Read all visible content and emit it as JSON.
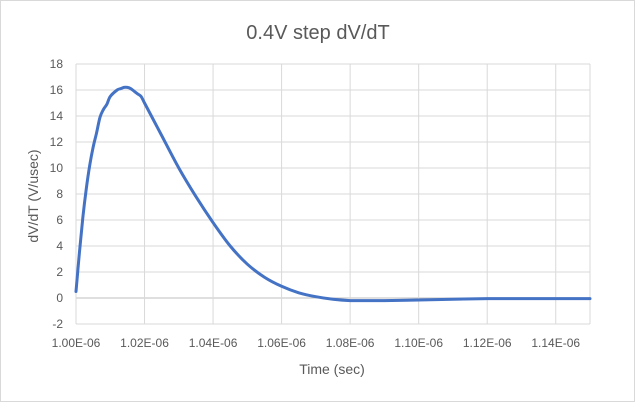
{
  "chart_data": {
    "type": "line",
    "title": "0.4V step dV/dT",
    "xlabel": "Time (sec)",
    "ylabel": "dV/dT (V/usec)",
    "xlim": [
      1e-06,
      1.15e-06
    ],
    "ylim": [
      -2,
      18
    ],
    "y_ticks": [
      -2,
      0,
      2,
      4,
      6,
      8,
      10,
      12,
      14,
      16,
      18
    ],
    "x_ticks": [
      1e-06,
      1.02e-06,
      1.04e-06,
      1.06e-06,
      1.08e-06,
      1.1e-06,
      1.12e-06,
      1.14e-06
    ],
    "x_tick_labels": [
      "1.00E-06",
      "1.02E-06",
      "1.04E-06",
      "1.06E-06",
      "1.08E-06",
      "1.10E-06",
      "1.12E-06",
      "1.14E-06"
    ],
    "y_tick_labels": [
      "-2",
      "0",
      "2",
      "4",
      "6",
      "8",
      "10",
      "12",
      "14",
      "16",
      "18"
    ],
    "grid": true,
    "legend": "none",
    "series": [
      {
        "color": "#4472c4",
        "x": [
          1e-06,
          1.001e-06,
          1.002e-06,
          1.003e-06,
          1.004e-06,
          1.005e-06,
          1.006e-06,
          1.007e-06,
          1.008e-06,
          1.009e-06,
          1.01e-06,
          1.012e-06,
          1.013e-06,
          1.014e-06,
          1.015e-06,
          1.016e-06,
          1.017e-06,
          1.018e-06,
          1.019e-06,
          1.02e-06,
          1.022e-06,
          1.025e-06,
          1.03e-06,
          1.035e-06,
          1.04e-06,
          1.045e-06,
          1.05e-06,
          1.055e-06,
          1.06e-06,
          1.065e-06,
          1.07e-06,
          1.075e-06,
          1.08e-06,
          1.085e-06,
          1.09e-06,
          1.1e-06,
          1.11e-06,
          1.12e-06,
          1.13e-06,
          1.14e-06,
          1.15e-06
        ],
        "y": [
          0.5,
          3.5,
          6.2,
          8.4,
          10.2,
          11.6,
          12.7,
          13.9,
          14.5,
          14.9,
          15.5,
          16.0,
          16.1,
          16.2,
          16.2,
          16.1,
          15.9,
          15.7,
          15.5,
          15.0,
          14.0,
          12.5,
          10.0,
          7.8,
          5.8,
          4.0,
          2.6,
          1.6,
          0.9,
          0.4,
          0.1,
          -0.1,
          -0.2,
          -0.2,
          -0.2,
          -0.15,
          -0.1,
          -0.05,
          -0.05,
          -0.05,
          -0.05
        ]
      }
    ]
  }
}
